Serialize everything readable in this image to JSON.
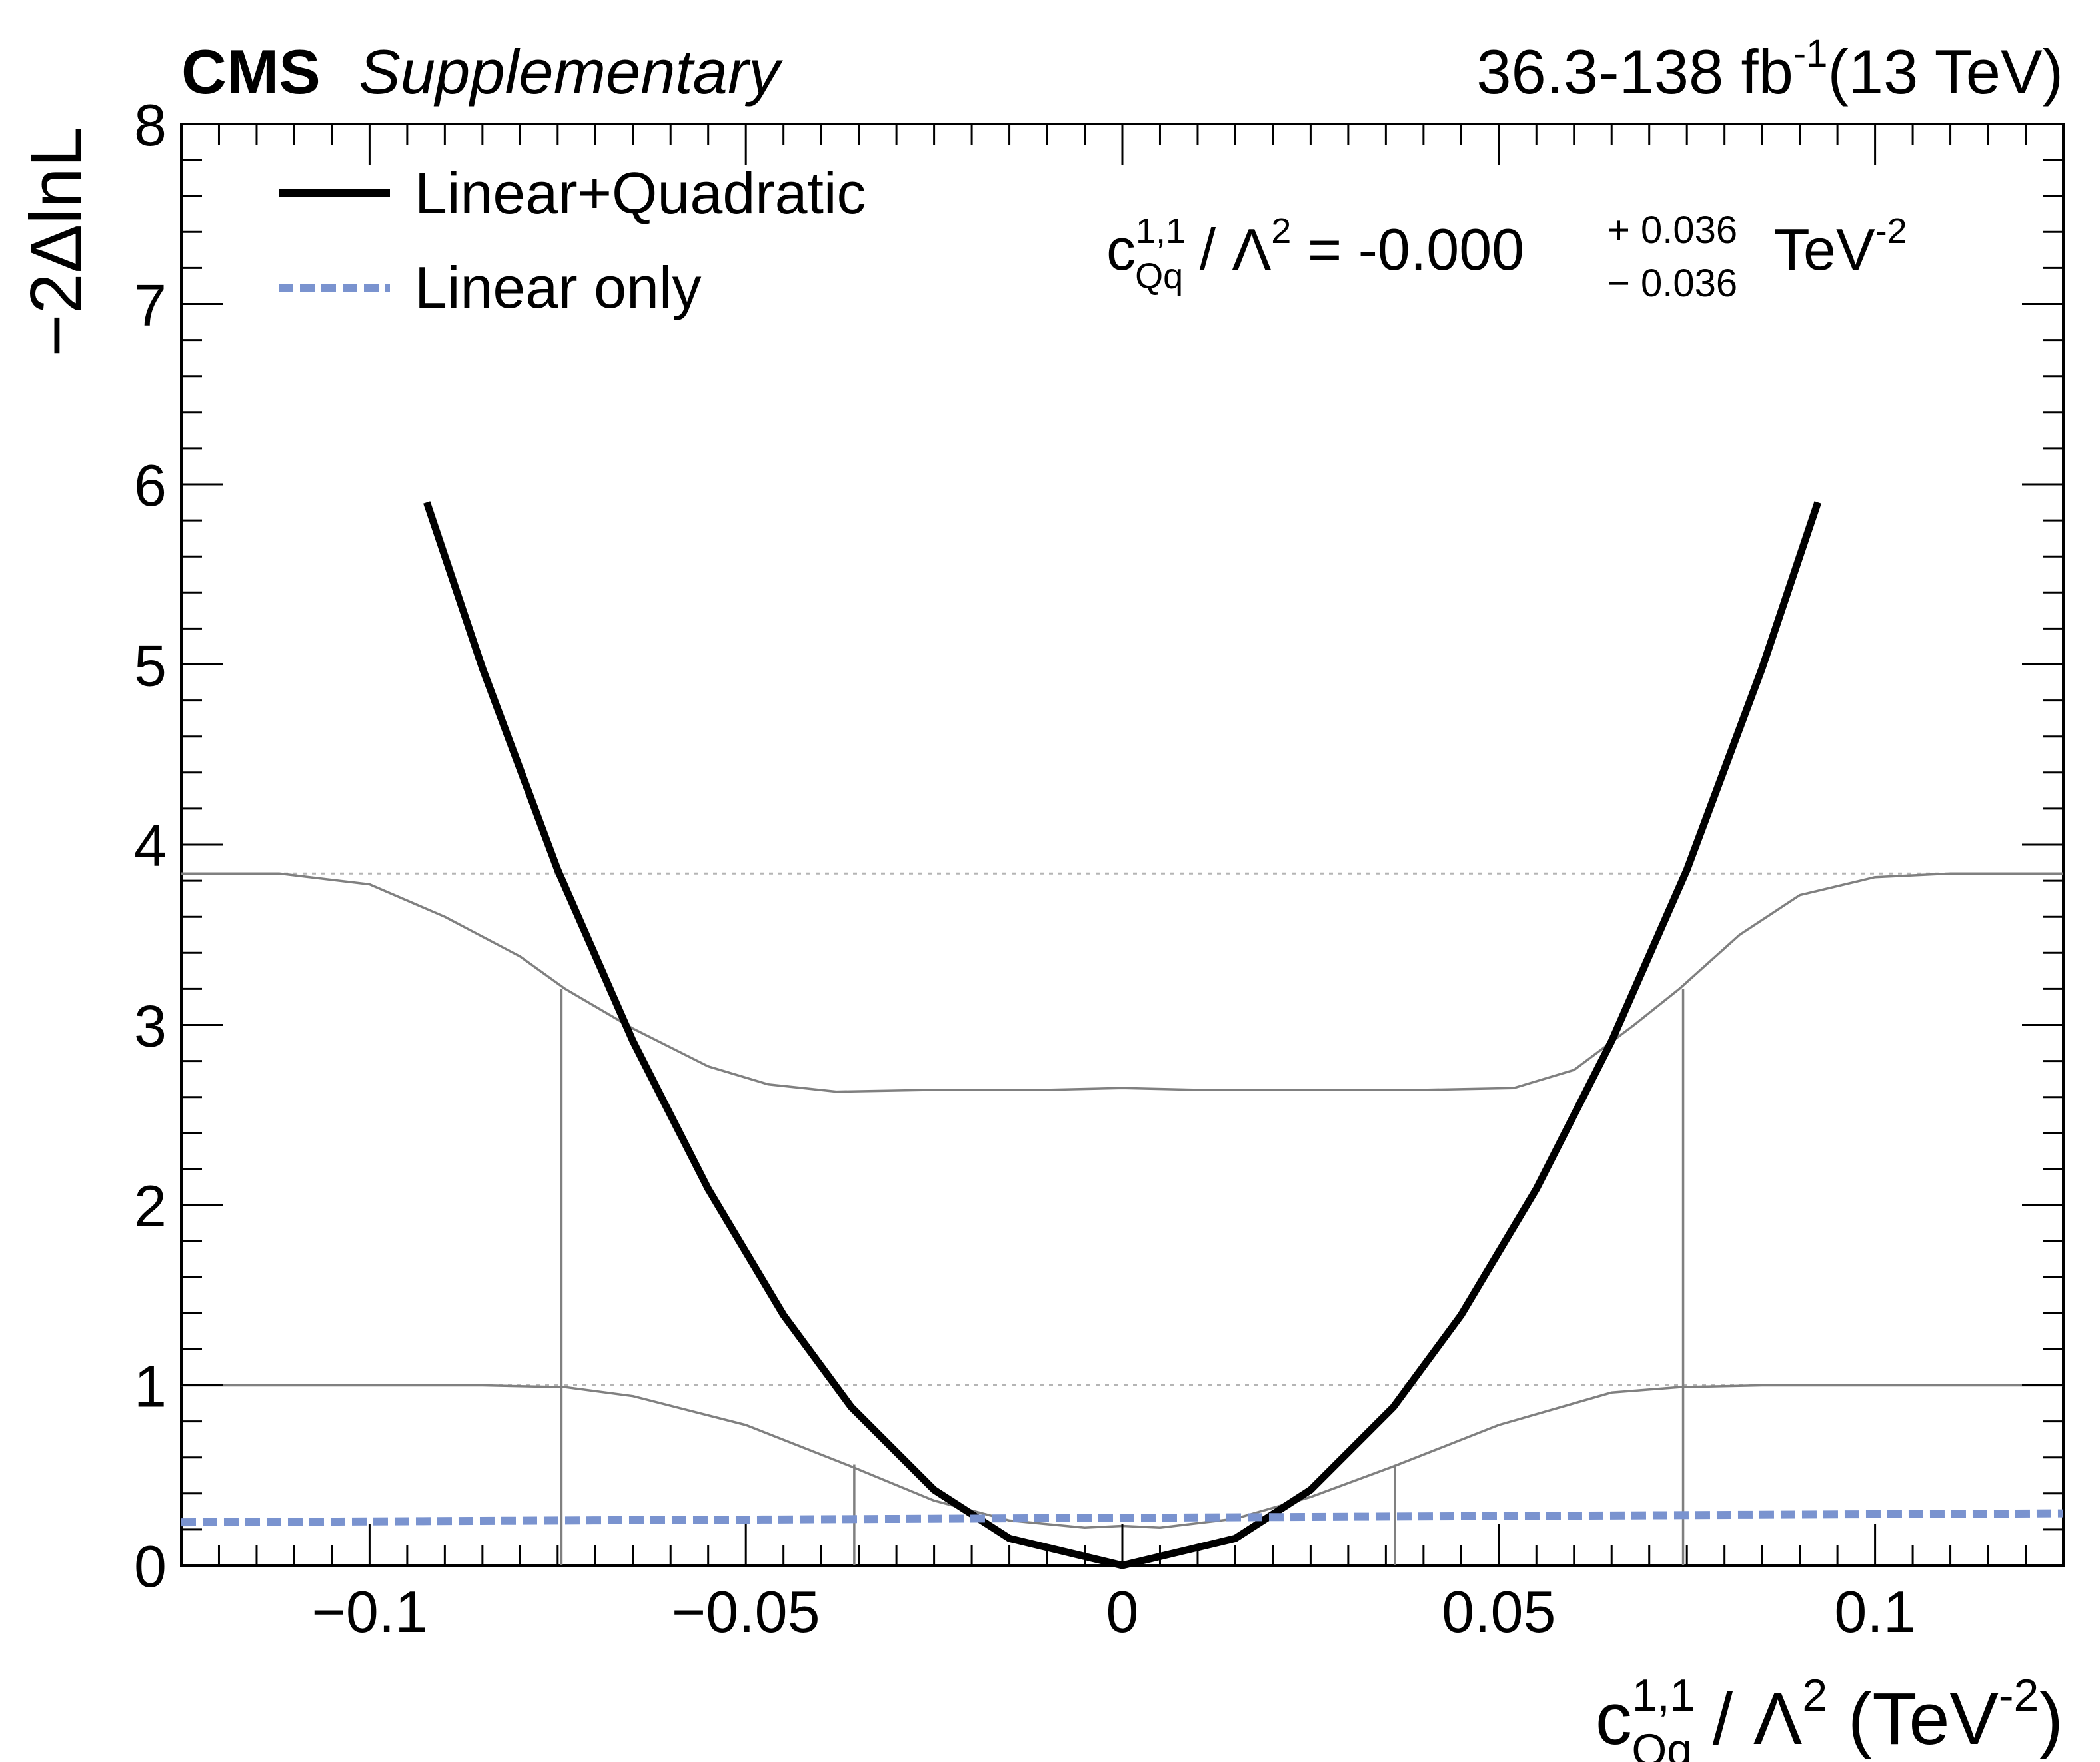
{
  "header": {
    "experiment": "CMS",
    "status": "Supplementary",
    "lumi_prefix": "36.3-138 fb",
    "lumi_exp": "-1",
    "energy": "(13 TeV)"
  },
  "legend": {
    "items": [
      {
        "label": "Linear+Quadratic",
        "color": "#000000",
        "style": "solid"
      },
      {
        "label": "Linear only",
        "color": "#7a93cf",
        "style": "dashed"
      }
    ]
  },
  "annotation": {
    "coef": "c",
    "coef_sup": "1,1",
    "coef_sub": "Qq",
    "lambda_text": " / Λ",
    "lambda_sup": "2",
    "equals_value": " = -0.000",
    "err_up": "+ 0.036",
    "err_down": "− 0.036",
    "unit": "TeV",
    "unit_sup": "-2"
  },
  "axes": {
    "ylabel": "−2ΔlnL",
    "xlabel": {
      "coef": "c",
      "coef_sup": "1,1",
      "coef_sub": "Qq",
      "mid": " / Λ",
      "mid_sup": "2",
      "unit_open": " (TeV",
      "unit_sup": "-2",
      "unit_close": ")"
    }
  },
  "chart_data": {
    "type": "line",
    "xlim": [
      -0.125,
      0.125
    ],
    "ylim": [
      0,
      8
    ],
    "x_ticks": [
      {
        "value": -0.1,
        "label": "−0.1"
      },
      {
        "value": -0.05,
        "label": "−0.05"
      },
      {
        "value": 0,
        "label": "0"
      },
      {
        "value": 0.05,
        "label": "0.05"
      },
      {
        "value": 0.1,
        "label": "0.1"
      }
    ],
    "y_ticks": [
      {
        "value": 0,
        "label": "0"
      },
      {
        "value": 1,
        "label": "1"
      },
      {
        "value": 2,
        "label": "2"
      },
      {
        "value": 3,
        "label": "3"
      },
      {
        "value": 4,
        "label": "4"
      },
      {
        "value": 5,
        "label": "5"
      },
      {
        "value": 6,
        "label": "6"
      },
      {
        "value": 7,
        "label": "7"
      },
      {
        "value": 8,
        "label": "8"
      }
    ],
    "series": [
      {
        "name": "Linear+Quadratic",
        "color": "#000000",
        "style": "solid",
        "x": [
          -0.0924,
          -0.085,
          -0.075,
          -0.065,
          -0.055,
          -0.045,
          -0.036,
          -0.025,
          -0.015,
          0,
          0.015,
          0.025,
          0.036,
          0.045,
          0.055,
          0.065,
          0.075,
          0.085,
          0.0924
        ],
        "y": [
          5.9,
          4.98,
          3.86,
          2.91,
          2.09,
          1.39,
          0.88,
          0.42,
          0.15,
          0.0,
          0.15,
          0.42,
          0.88,
          1.39,
          2.09,
          2.91,
          3.86,
          4.98,
          5.9
        ]
      },
      {
        "name": "Linear only",
        "color": "#7a93cf",
        "style": "dashed",
        "x": [
          -0.125,
          0.125
        ],
        "y": [
          0.24,
          0.29
        ]
      }
    ],
    "reference_curves": [
      {
        "color": "#808080",
        "x": [
          -0.125,
          -0.112,
          -0.1,
          -0.09,
          -0.08,
          -0.074,
          -0.065,
          -0.055,
          -0.047,
          -0.038,
          -0.025,
          -0.01,
          0,
          0.01,
          0.025,
          0.04,
          0.052,
          0.06,
          0.068,
          0.074,
          0.082,
          0.09,
          0.1,
          0.11,
          0.125
        ],
        "y": [
          3.84,
          3.84,
          3.78,
          3.6,
          3.38,
          3.2,
          2.98,
          2.77,
          2.67,
          2.63,
          2.64,
          2.64,
          2.65,
          2.64,
          2.64,
          2.64,
          2.65,
          2.75,
          3.0,
          3.2,
          3.5,
          3.72,
          3.82,
          3.84,
          3.84
        ]
      },
      {
        "color": "#808080",
        "x": [
          -0.125,
          -0.1,
          -0.085,
          -0.074,
          -0.065,
          -0.05,
          -0.036,
          -0.025,
          -0.015,
          -0.005,
          0,
          0.005,
          0.015,
          0.025,
          0.036,
          0.05,
          0.065,
          0.074,
          0.085,
          0.1,
          0.125
        ],
        "y": [
          1.0,
          1.0,
          1.0,
          0.99,
          0.94,
          0.78,
          0.55,
          0.36,
          0.25,
          0.21,
          0.22,
          0.21,
          0.26,
          0.38,
          0.55,
          0.78,
          0.96,
          0.99,
          1.0,
          1.0,
          1.0
        ]
      }
    ],
    "threshold_lines": [
      1.0,
      3.84
    ],
    "interval_markers": [
      {
        "x": -0.0745,
        "y": 3.2
      },
      {
        "x": -0.0356,
        "y": 0.56
      },
      {
        "x": 0.0362,
        "y": 0.56
      },
      {
        "x": 0.0745,
        "y": 3.2
      }
    ],
    "grid": false,
    "legend_position": "top-left"
  }
}
